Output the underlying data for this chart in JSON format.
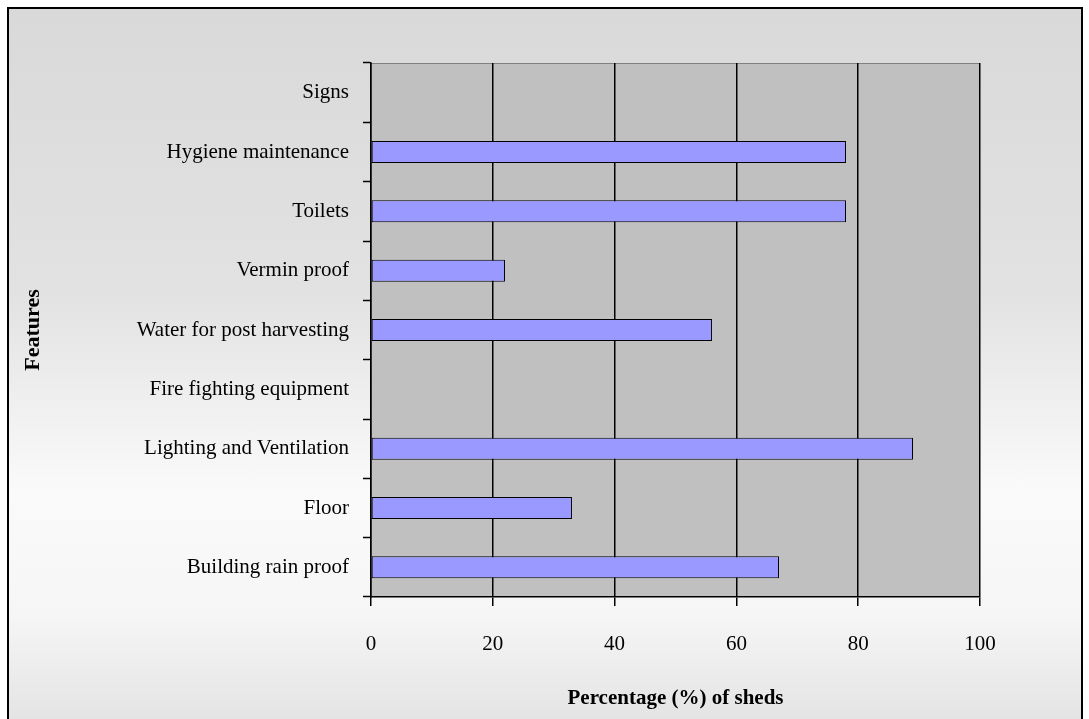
{
  "chart_data": {
    "type": "bar",
    "orientation": "horizontal",
    "xlabel": "Percentage (%) of sheds",
    "ylabel": "Features",
    "categories": [
      "Signs",
      "Hygiene maintenance",
      "Toilets",
      "Vermin proof",
      "Water for post harvesting",
      "Fire fighting equipment",
      "Lighting and Ventilation",
      "Floor",
      "Building rain proof"
    ],
    "values": [
      0,
      78,
      78,
      22,
      56,
      0,
      89,
      33,
      67
    ],
    "color": "#9999ff",
    "xlim": [
      0,
      100
    ],
    "xticks": [
      0,
      20,
      40,
      60,
      80,
      100
    ],
    "grid": "x"
  }
}
